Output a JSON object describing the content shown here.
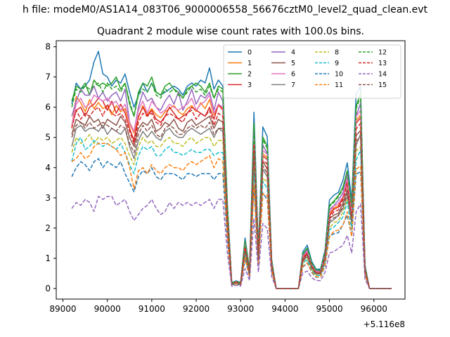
{
  "chart_data": {
    "type": "line",
    "suptitle": "h file: modeM0/AS1A14_083T06_9000006558_56676cztM0_level2_quad_clean.evt",
    "title": "Quadrant 2 module wise count rates with 100.0s bins.",
    "offset_label": "+5.116e8",
    "xlim": [
      88850,
      96700
    ],
    "ylim": [
      -0.35,
      8.2
    ],
    "xticks": [
      89000,
      90000,
      91000,
      92000,
      93000,
      94000,
      95000,
      96000
    ],
    "xtick_labels": [
      "89000",
      "90000",
      "91000",
      "92000",
      "93000",
      "94000",
      "95000",
      "96000"
    ],
    "yticks": [
      0,
      1,
      2,
      3,
      4,
      5,
      6,
      7,
      8
    ],
    "ytick_labels": [
      "0",
      "1",
      "2",
      "3",
      "4",
      "5",
      "6",
      "7",
      "8"
    ],
    "legend_position": "upper right",
    "legend_columns": 4,
    "grid": false,
    "x_points": [
      89200,
      89300,
      89400,
      89500,
      89600,
      89700,
      89800,
      89900,
      90000,
      90100,
      90200,
      90300,
      90400,
      90500,
      90600,
      90700,
      90800,
      90900,
      91000,
      91100,
      91200,
      91300,
      91400,
      91500,
      91600,
      91700,
      91800,
      91900,
      92000,
      92100,
      92200,
      92300,
      92400,
      92500,
      92600,
      92700,
      92800,
      92900,
      93000,
      93100,
      93200,
      93300,
      93400,
      93500,
      93600,
      93700,
      93800,
      93900,
      94000,
      94100,
      94200,
      94300,
      94400,
      94500,
      94600,
      94700,
      94800,
      94900,
      95000,
      95100,
      95200,
      95300,
      95400,
      95500,
      95600,
      95700,
      95800,
      95900,
      96000,
      96100,
      96200,
      96300,
      96400
    ],
    "series": [
      {
        "name": "0",
        "color": "#1f77b4",
        "dashed": false,
        "base": 7.0,
        "dev": [
          -0.9,
          -0.2,
          -0.4,
          -0.3,
          -0.1,
          0.5,
          0.85,
          0.1,
          0.0,
          -0.3,
          -0.1,
          -0.2,
          0.1,
          -0.5,
          -1.0,
          -0.6,
          -0.2,
          -0.5,
          -0.2,
          -0.5,
          -0.6,
          -0.5,
          -0.4,
          -0.3,
          -0.4,
          -0.6,
          -0.3,
          -0.2,
          -0.3,
          -0.1,
          -0.2,
          0.3,
          -0.4,
          -0.1,
          -0.3
        ]
      },
      {
        "name": "1",
        "color": "#ff7f0e",
        "dashed": false,
        "base": 5.95,
        "dev": [
          -0.6,
          0.4,
          0.2,
          -0.1,
          0.3,
          0.0,
          0.2,
          0.0,
          0.1,
          -0.2,
          0.1,
          -0.1,
          0.0,
          -0.5,
          -0.8,
          -0.3,
          0.1,
          -0.2,
          0.0,
          -0.2,
          -0.3,
          -0.1,
          0.0,
          0.1,
          -0.1,
          -0.2,
          0.0,
          0.1,
          -0.1,
          0.2,
          0.0,
          0.3,
          -0.2,
          0.1,
          0.0
        ]
      },
      {
        "name": "2",
        "color": "#2ca02c",
        "dashed": false,
        "base": 6.6,
        "dev": [
          -0.4,
          0.1,
          0.0,
          0.2,
          -0.2,
          0.3,
          0.1,
          0.2,
          0.1,
          0.2,
          0.4,
          0.0,
          0.2,
          -0.5,
          -0.9,
          -0.1,
          0.2,
          0.1,
          0.4,
          -0.1,
          -0.2,
          0.1,
          0.2,
          0.0,
          -0.1,
          -0.3,
          0.0,
          0.1,
          0.2,
          0.1,
          -0.1,
          0.2,
          -0.3,
          0.1,
          0.0
        ]
      },
      {
        "name": "3",
        "color": "#d62728",
        "dashed": false,
        "base": 5.9,
        "dev": [
          -0.5,
          0.0,
          0.1,
          -0.2,
          0.1,
          0.2,
          0.4,
          0.3,
          0.0,
          0.3,
          -0.1,
          0.2,
          -0.1,
          -0.6,
          -1.0,
          -0.2,
          0.1,
          -0.2,
          0.0,
          -0.3,
          -0.4,
          -0.2,
          0.1,
          -0.1,
          -0.3,
          -0.2,
          -0.1,
          0.1,
          0.0,
          -0.1,
          -0.2,
          0.1,
          -0.3,
          0.2,
          0.0
        ]
      },
      {
        "name": "4",
        "color": "#9467bd",
        "dashed": false,
        "base": 6.3,
        "dev": [
          -0.6,
          -0.1,
          0.3,
          0.1,
          0.1,
          0.4,
          0.0,
          0.2,
          -0.1,
          0.1,
          0.2,
          -0.1,
          0.3,
          -0.8,
          -1.1,
          -0.3,
          0.2,
          -0.1,
          0.0,
          -0.3,
          -0.4,
          -0.1,
          0.1,
          -0.2,
          0.2,
          -0.4,
          -0.1,
          0.3,
          -0.2,
          0.1,
          0.0,
          0.2,
          -0.4,
          0.2,
          -0.1
        ]
      },
      {
        "name": "5",
        "color": "#8c564b",
        "dashed": false,
        "base": 5.5,
        "dev": [
          -0.4,
          0.1,
          0.0,
          -0.1,
          0.2,
          0.0,
          0.1,
          -0.2,
          0.1,
          0.0,
          -0.1,
          0.2,
          0.0,
          -0.5,
          -0.8,
          -0.2,
          0.0,
          -0.1,
          0.1,
          -0.3,
          -0.2,
          0.0,
          -0.1,
          0.1,
          -0.2,
          -0.3,
          0.0,
          0.1,
          -0.1,
          0.0,
          0.1,
          0.2,
          -0.2,
          0.1,
          0.0
        ]
      },
      {
        "name": "6",
        "color": "#e377c2",
        "dashed": false,
        "base": 6.1,
        "dev": [
          -0.7,
          0.0,
          0.2,
          -0.1,
          0.0,
          0.3,
          0.2,
          0.1,
          0.2,
          0.0,
          0.1,
          -0.2,
          0.0,
          -0.6,
          -0.9,
          -0.2,
          0.1,
          -0.3,
          0.1,
          -0.1,
          -0.3,
          -0.2,
          0.0,
          -0.1,
          -0.2,
          -0.1,
          0.0,
          0.2,
          -0.2,
          0.0,
          0.1,
          0.3,
          -0.3,
          0.0,
          -0.1
        ]
      },
      {
        "name": "7",
        "color": "#7f7f7f",
        "dashed": false,
        "base": 5.2,
        "dev": [
          -0.5,
          0.1,
          0.2,
          0.0,
          0.1,
          0.1,
          0.0,
          0.2,
          -0.1,
          0.1,
          0.0,
          -0.1,
          0.1,
          -0.5,
          -0.9,
          -0.3,
          0.0,
          -0.2,
          0.0,
          -0.2,
          -0.3,
          0.0,
          0.1,
          -0.1,
          -0.2,
          -0.2,
          0.0,
          0.1,
          0.0,
          -0.1,
          0.0,
          0.1,
          -0.2,
          0.1,
          0.0
        ]
      },
      {
        "name": "8",
        "color": "#bcbd22",
        "dashed": true,
        "base": 4.9,
        "dev": [
          -0.4,
          0.1,
          -0.1,
          0.0,
          0.2,
          -0.1,
          0.1,
          0.0,
          0.1,
          -0.1,
          0.0,
          0.1,
          -0.1,
          -0.5,
          -0.8,
          -0.2,
          0.1,
          -0.1,
          0.0,
          -0.2,
          -0.2,
          0.0,
          0.1,
          -0.1,
          -0.1,
          -0.2,
          0.0,
          0.1,
          -0.1,
          0.0,
          0.1,
          0.1,
          -0.2,
          0.0,
          0.0
        ]
      },
      {
        "name": "9",
        "color": "#17becf",
        "dashed": true,
        "base": 4.7,
        "dev": [
          -0.5,
          0.1,
          0.3,
          -0.1,
          0.0,
          0.2,
          0.1,
          0.0,
          0.1,
          0.0,
          -0.1,
          0.1,
          -0.2,
          -0.6,
          -0.9,
          -0.3,
          0.0,
          -0.1,
          0.0,
          -0.3,
          -0.3,
          -0.1,
          0.0,
          -0.2,
          -0.2,
          -0.3,
          -0.2,
          -0.1,
          -0.2,
          -0.2,
          -0.1,
          -0.1,
          -0.3,
          -0.2,
          -0.2
        ]
      },
      {
        "name": "10",
        "color": "#1f77b4",
        "dashed": true,
        "base": 4.1,
        "dev": [
          -0.4,
          -0.1,
          0.1,
          0.0,
          -0.2,
          0.1,
          0.2,
          -0.1,
          0.1,
          0.0,
          -0.1,
          0.1,
          -0.3,
          -0.6,
          -0.9,
          -0.4,
          -0.2,
          -0.3,
          -0.1,
          -0.4,
          -0.5,
          -0.3,
          -0.3,
          -0.3,
          -0.4,
          -0.5,
          -0.3,
          -0.3,
          -0.4,
          -0.3,
          -0.3,
          -0.3,
          -0.5,
          -0.3,
          -0.3
        ]
      },
      {
        "name": "11",
        "color": "#ff7f0e",
        "dashed": true,
        "base": 4.2,
        "dev": [
          0.0,
          0.1,
          0.3,
          0.1,
          0.2,
          0.5,
          0.6,
          0.6,
          0.6,
          0.5,
          0.4,
          0.2,
          0.3,
          -0.2,
          -0.9,
          -0.3,
          -0.2,
          -0.4,
          -0.1,
          -0.3,
          -0.4,
          -0.2,
          -0.1,
          -0.2,
          -0.2,
          -0.3,
          -0.1,
          0.0,
          -0.1,
          0.0,
          0.1,
          0.2,
          -0.2,
          0.1,
          0.0
        ]
      },
      {
        "name": "12",
        "color": "#2ca02c",
        "dashed": true,
        "base": 6.5,
        "dev": [
          -0.5,
          0.1,
          0.0,
          0.2,
          0.1,
          0.2,
          0.3,
          0.0,
          0.3,
          0.1,
          0.2,
          0.0,
          0.3,
          -0.3,
          -0.8,
          -0.1,
          0.1,
          0.0,
          0.3,
          -0.1,
          -0.2,
          0.1,
          0.0,
          0.1,
          -0.1,
          -0.2,
          0.0,
          0.2,
          0.0,
          0.1,
          -0.1,
          0.2,
          -0.2,
          0.1,
          0.0
        ]
      },
      {
        "name": "13",
        "color": "#d62728",
        "dashed": true,
        "base": 5.7,
        "dev": [
          -0.4,
          0.2,
          -0.1,
          0.1,
          0.0,
          0.2,
          0.3,
          0.0,
          0.4,
          0.1,
          0.0,
          0.1,
          -0.1,
          -0.5,
          -0.9,
          -0.2,
          0.1,
          0.0,
          0.1,
          -0.2,
          -0.3,
          0.0,
          0.1,
          0.0,
          -0.1,
          -0.2,
          0.1,
          0.2,
          -0.1,
          0.1,
          0.0,
          0.2,
          -0.3,
          0.1,
          0.0
        ]
      },
      {
        "name": "14",
        "color": "#9467bd",
        "dashed": true,
        "base": 2.85,
        "dev": [
          -0.2,
          0.0,
          -0.1,
          0.1,
          0.0,
          -0.3,
          0.2,
          0.1,
          0.2,
          0.2,
          -0.1,
          0.0,
          0.1,
          -0.3,
          -0.6,
          -0.4,
          -0.2,
          -0.1,
          0.1,
          -0.2,
          -0.4,
          -0.3,
          0.0,
          -0.2,
          0.0,
          -0.1,
          0.0,
          -0.1,
          0.0,
          -0.1,
          0.0,
          0.1,
          -0.2,
          0.1,
          0.1
        ]
      },
      {
        "name": "15",
        "color": "#8c564b",
        "dashed": true,
        "base": 5.3,
        "dev": [
          -0.3,
          0.1,
          0.2,
          0.0,
          0.2,
          0.0,
          0.1,
          0.2,
          0.1,
          0.0,
          -0.1,
          0.1,
          0.0,
          -0.5,
          -0.8,
          -0.2,
          0.1,
          -0.1,
          0.1,
          -0.2,
          -0.3,
          0.0,
          0.1,
          0.0,
          -0.2,
          -0.2,
          0.0,
          0.1,
          0.0,
          0.1,
          0.0,
          0.2,
          -0.2,
          0.0,
          0.0
        ]
      }
    ],
    "tail_profile": [
      0.45,
      0.03,
      0.04,
      0.03,
      0.26,
      0.1,
      0.9,
      0.2,
      0.82,
      0.78,
      0.15,
      0.0,
      0.0,
      0.0,
      0.0,
      0.0,
      0.0,
      0.19,
      0.22,
      0.14,
      0.1,
      0.1,
      0.2,
      0.45,
      0.48,
      0.5,
      0.55,
      0.65,
      0.45,
      1.0,
      1.05,
      0.12,
      0.0
    ]
  }
}
